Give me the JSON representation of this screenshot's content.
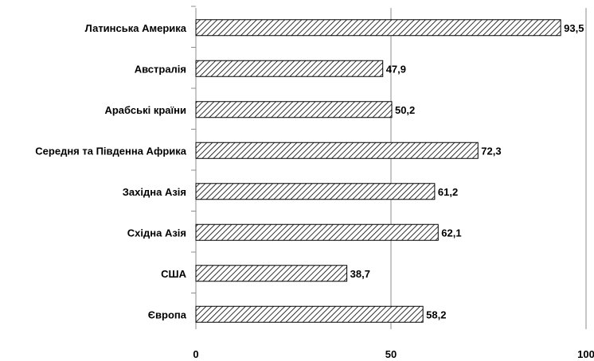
{
  "chart_data": {
    "type": "bar",
    "orientation": "horizontal",
    "categories": [
      "Латинська Америка",
      "Австралія",
      "Арабські країни",
      "Середня та Південна Африка",
      "Західна Азія",
      "Східна Азія",
      "США",
      "Європа"
    ],
    "values": [
      93.5,
      47.9,
      50.2,
      72.3,
      61.2,
      62.1,
      38.7,
      58.2
    ],
    "value_labels": [
      "93,5",
      "47,9",
      "50,2",
      "72,3",
      "61,2",
      "62,1",
      "38,7",
      "58,2"
    ],
    "xlim": [
      0,
      100
    ],
    "xticks": [
      0,
      50,
      100
    ],
    "xtick_labels": [
      "0",
      "50",
      "100"
    ],
    "grid": "vertical",
    "bar_fill": "diagonal-hatch",
    "colors": {
      "bar_stroke": "#000000",
      "hatch": "#000000",
      "grid": "#8c8c8c",
      "axis": "#8c8c8c"
    }
  }
}
